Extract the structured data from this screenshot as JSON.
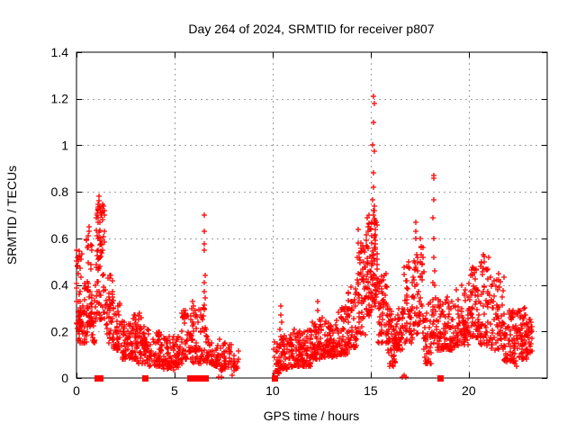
{
  "page": {
    "title": "Day 264 of 2024, SRMTID for receiver p807"
  },
  "chart_data": {
    "type": "scatter",
    "title": "Day 264 of 2024, SRMTID for receiver p807",
    "xlabel": "GPS time / hours",
    "ylabel": "SRMTID / TECUs",
    "xlim": [
      0,
      24
    ],
    "ylim": [
      0,
      1.4
    ],
    "xticks": [
      0,
      5,
      10,
      15,
      20
    ],
    "xtick_labels": [
      "0",
      "5",
      "10",
      "15",
      "20"
    ],
    "yticks": [
      0,
      0.2,
      0.4,
      0.6,
      0.8,
      1.0,
      1.2,
      1.4
    ],
    "ytick_labels": [
      "0",
      "0.2",
      "0.4",
      "0.6",
      "0.8",
      "1",
      "1.2",
      "1.4"
    ],
    "grid": true,
    "grid_color": "#9e9e9e",
    "accent_color": "#ff0000",
    "legend": "none",
    "data_gap_hours": [
      8.3,
      10.05
    ],
    "series": [
      {
        "name": "srmtid",
        "marker": "plus",
        "color": "#ff0000",
        "bands_format": [
          "t_start",
          "t_end",
          "count",
          "y_min",
          "y_max",
          "low_bias_power"
        ],
        "bands": [
          [
            0.0,
            0.3,
            40,
            0.2,
            0.55,
            1.6
          ],
          [
            0.05,
            0.35,
            15,
            0.15,
            0.3,
            1.2
          ],
          [
            0.3,
            0.55,
            25,
            0.15,
            0.42,
            1.5
          ],
          [
            0.5,
            0.8,
            40,
            0.22,
            0.65,
            1.4
          ],
          [
            0.75,
            1.0,
            25,
            0.15,
            0.45,
            1.4
          ],
          [
            1.0,
            1.45,
            60,
            0.25,
            0.78,
            1.2
          ],
          [
            1.05,
            1.35,
            18,
            0.45,
            0.75,
            1.0
          ],
          [
            1.45,
            1.85,
            40,
            0.15,
            0.46,
            1.5
          ],
          [
            1.85,
            2.3,
            50,
            0.12,
            0.34,
            1.7
          ],
          [
            2.3,
            3.1,
            85,
            0.08,
            0.26,
            1.7
          ],
          [
            2.75,
            3.3,
            20,
            0.15,
            0.28,
            1.2
          ],
          [
            3.1,
            3.7,
            55,
            0.06,
            0.22,
            1.6
          ],
          [
            3.7,
            4.4,
            60,
            0.05,
            0.2,
            1.6
          ],
          [
            4.4,
            5.35,
            85,
            0.04,
            0.18,
            1.5
          ],
          [
            5.35,
            5.95,
            55,
            0.08,
            0.3,
            1.6
          ],
          [
            5.9,
            6.35,
            40,
            0.06,
            0.3,
            1.7
          ],
          [
            6.35,
            6.65,
            22,
            0.07,
            0.3,
            1.4
          ],
          [
            6.65,
            7.35,
            55,
            0.05,
            0.18,
            1.5
          ],
          [
            7.35,
            8.05,
            45,
            0.03,
            0.15,
            1.4
          ],
          [
            8.05,
            8.3,
            10,
            0.04,
            0.12,
            1.3
          ],
          [
            10.05,
            10.4,
            28,
            0.02,
            0.16,
            1.4
          ],
          [
            10.4,
            11.0,
            70,
            0.04,
            0.19,
            1.5
          ],
          [
            11.0,
            12.0,
            110,
            0.05,
            0.21,
            1.5
          ],
          [
            12.0,
            12.55,
            60,
            0.08,
            0.26,
            1.5
          ],
          [
            12.55,
            13.35,
            80,
            0.09,
            0.25,
            1.5
          ],
          [
            13.35,
            13.85,
            55,
            0.1,
            0.31,
            1.5
          ],
          [
            13.85,
            14.3,
            50,
            0.13,
            0.4,
            1.4
          ],
          [
            14.3,
            14.75,
            50,
            0.18,
            0.58,
            1.4
          ],
          [
            14.75,
            15.05,
            50,
            0.25,
            0.7,
            1.2
          ],
          [
            15.05,
            15.35,
            55,
            0.3,
            0.72,
            1.1
          ],
          [
            15.35,
            15.85,
            55,
            0.15,
            0.45,
            1.5
          ],
          [
            15.85,
            16.25,
            50,
            0.05,
            0.3,
            1.4
          ],
          [
            16.25,
            16.65,
            45,
            0.12,
            0.3,
            1.4
          ],
          [
            16.65,
            17.15,
            50,
            0.15,
            0.48,
            1.4
          ],
          [
            17.15,
            17.7,
            55,
            0.18,
            0.58,
            1.4
          ],
          [
            17.7,
            18.1,
            40,
            0.06,
            0.33,
            1.4
          ],
          [
            18.1,
            18.35,
            22,
            0.15,
            0.4,
            1.3
          ],
          [
            18.35,
            19.3,
            90,
            0.12,
            0.35,
            1.6
          ],
          [
            19.3,
            20.0,
            75,
            0.14,
            0.4,
            1.5
          ],
          [
            20.0,
            20.55,
            60,
            0.17,
            0.48,
            1.4
          ],
          [
            20.55,
            21.15,
            60,
            0.14,
            0.53,
            1.5
          ],
          [
            21.15,
            21.8,
            60,
            0.12,
            0.44,
            1.5
          ],
          [
            21.8,
            22.5,
            70,
            0.07,
            0.29,
            1.5
          ],
          [
            22.5,
            23.0,
            60,
            0.08,
            0.3,
            1.5
          ],
          [
            23.0,
            23.25,
            25,
            0.1,
            0.26,
            1.3
          ]
        ],
        "points": [
          [
            0.02,
            0.55
          ],
          [
            0.05,
            0.52
          ],
          [
            0.03,
            0.48
          ],
          [
            0.08,
            0.45
          ],
          [
            0.62,
            0.65
          ],
          [
            0.65,
            0.63
          ],
          [
            0.6,
            0.61
          ],
          [
            1.08,
            0.69
          ],
          [
            1.1,
            0.72
          ],
          [
            1.13,
            0.78
          ],
          [
            1.16,
            0.76
          ],
          [
            1.2,
            0.74
          ],
          [
            1.22,
            0.7
          ],
          [
            2.95,
            0.27
          ],
          [
            3.05,
            0.25
          ],
          [
            4.95,
            0.035
          ],
          [
            5.92,
            0.33
          ],
          [
            5.95,
            0.31
          ],
          [
            6.49,
            0.3
          ],
          [
            6.5,
            0.41
          ],
          [
            6.5,
            0.63
          ],
          [
            6.51,
            0.55
          ],
          [
            6.52,
            0.7
          ],
          [
            6.52,
            0.37
          ],
          [
            6.53,
            0.575
          ],
          [
            6.53,
            0.315
          ],
          [
            6.54,
            0.44
          ],
          [
            6.55,
            0.345
          ],
          [
            7.25,
            0.005
          ],
          [
            7.38,
            0.005
          ],
          [
            7.95,
            0.01
          ],
          [
            10.1,
            0.02
          ],
          [
            10.12,
            0.03
          ],
          [
            10.38,
            0.21
          ],
          [
            10.4,
            0.27
          ],
          [
            10.42,
            0.31
          ],
          [
            10.44,
            0.24
          ],
          [
            12.3,
            0.29
          ],
          [
            12.32,
            0.33
          ],
          [
            13.52,
            0.3
          ],
          [
            14.02,
            0.33
          ],
          [
            14.05,
            0.3
          ],
          [
            14.33,
            0.52
          ],
          [
            14.35,
            0.64
          ],
          [
            14.38,
            0.58
          ],
          [
            14.62,
            0.55
          ],
          [
            14.65,
            0.5
          ],
          [
            14.88,
            0.63
          ],
          [
            14.9,
            0.7
          ],
          [
            14.92,
            0.66
          ],
          [
            15.11,
            0.765
          ],
          [
            15.12,
            1.0
          ],
          [
            15.13,
            1.21
          ],
          [
            15.13,
            0.7
          ],
          [
            15.14,
            0.88
          ],
          [
            15.15,
            1.1
          ],
          [
            15.15,
            0.72
          ],
          [
            15.16,
            0.82
          ],
          [
            15.17,
            1.18
          ],
          [
            15.18,
            0.975
          ],
          [
            15.19,
            0.74
          ],
          [
            15.2,
            0.66
          ],
          [
            15.22,
            0.64
          ],
          [
            15.95,
            0.05
          ],
          [
            16.0,
            0.06
          ],
          [
            16.62,
            0.005
          ],
          [
            16.72,
            0.01
          ],
          [
            16.8,
            0.005
          ],
          [
            16.95,
            0.5
          ],
          [
            16.98,
            0.47
          ],
          [
            17.28,
            0.6
          ],
          [
            17.3,
            0.67
          ],
          [
            17.32,
            0.63
          ],
          [
            17.52,
            0.5
          ],
          [
            17.55,
            0.6
          ],
          [
            17.58,
            0.56
          ],
          [
            17.9,
            0.06
          ],
          [
            17.95,
            0.08
          ],
          [
            18.18,
            0.41
          ],
          [
            18.19,
            0.69
          ],
          [
            18.2,
            0.87
          ],
          [
            18.21,
            0.52
          ],
          [
            18.22,
            0.765
          ],
          [
            18.23,
            0.6
          ],
          [
            18.24,
            0.86
          ],
          [
            18.25,
            0.46
          ],
          [
            20.18,
            0.44
          ],
          [
            20.22,
            0.47
          ],
          [
            20.72,
            0.47
          ],
          [
            20.75,
            0.53
          ],
          [
            20.78,
            0.5
          ],
          [
            21.5,
            0.45
          ],
          [
            21.53,
            0.42
          ],
          [
            22.3,
            0.07
          ],
          [
            22.35,
            0.06
          ],
          [
            22.42,
            0.05
          ],
          [
            22.85,
            0.3
          ],
          [
            22.9,
            0.27
          ],
          [
            23.15,
            0.25
          ],
          [
            23.2,
            0.22
          ]
        ]
      },
      {
        "name": "detections",
        "marker": "filled-square",
        "color": "#ff0000",
        "y": 0,
        "t": [
          1.05,
          1.18,
          3.5,
          5.78,
          5.9,
          6.15,
          6.24,
          6.33,
          6.42,
          6.5,
          6.58,
          10.08,
          18.52
        ]
      }
    ]
  }
}
